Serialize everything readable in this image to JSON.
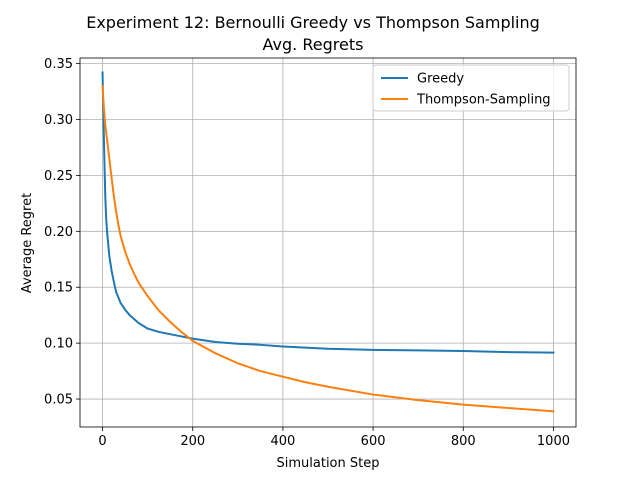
{
  "chart_data": {
    "type": "line",
    "title": "Experiment 12: Bernoulli Greedy vs Thompson Sampling",
    "subtitle": "Avg. Regrets",
    "xlabel": "Simulation Step",
    "ylabel": "Average Regret",
    "xlim": [
      -50,
      1050
    ],
    "ylim": [
      0.025,
      0.355
    ],
    "xticks": [
      0,
      200,
      400,
      600,
      800,
      1000
    ],
    "xtick_labels": [
      "0",
      "200",
      "400",
      "600",
      "800",
      "1000"
    ],
    "yticks": [
      0.05,
      0.1,
      0.15,
      0.2,
      0.25,
      0.3,
      0.35
    ],
    "ytick_labels": [
      "0.05",
      "0.10",
      "0.15",
      "0.20",
      "0.25",
      "0.30",
      "0.35"
    ],
    "grid": true,
    "legend_position": "top-right",
    "series": [
      {
        "name": "Greedy",
        "color": "#1f77b4",
        "x": [
          0,
          2,
          4,
          6,
          8,
          10,
          15,
          20,
          25,
          30,
          40,
          50,
          60,
          80,
          100,
          125,
          150,
          175,
          200,
          250,
          300,
          350,
          400,
          500,
          600,
          700,
          800,
          900,
          1000
        ],
        "y": [
          0.342,
          0.3,
          0.265,
          0.232,
          0.212,
          0.2,
          0.178,
          0.165,
          0.155,
          0.146,
          0.136,
          0.13,
          0.125,
          0.118,
          0.113,
          0.11,
          0.108,
          0.106,
          0.104,
          0.101,
          0.0995,
          0.0985,
          0.097,
          0.095,
          0.094,
          0.0935,
          0.093,
          0.092,
          0.0915
        ]
      },
      {
        "name": "Thompson-Sampling",
        "color": "#ff7f0e",
        "x": [
          0,
          3,
          6,
          10,
          15,
          20,
          25,
          30,
          35,
          40,
          50,
          60,
          70,
          80,
          100,
          125,
          150,
          175,
          200,
          250,
          300,
          350,
          400,
          450,
          500,
          600,
          700,
          800,
          900,
          1000
        ],
        "y": [
          0.33,
          0.31,
          0.295,
          0.282,
          0.265,
          0.248,
          0.232,
          0.218,
          0.206,
          0.196,
          0.182,
          0.171,
          0.162,
          0.154,
          0.142,
          0.129,
          0.119,
          0.11,
          0.102,
          0.091,
          0.082,
          0.075,
          0.07,
          0.065,
          0.061,
          0.054,
          0.049,
          0.045,
          0.042,
          0.039
        ]
      }
    ]
  }
}
